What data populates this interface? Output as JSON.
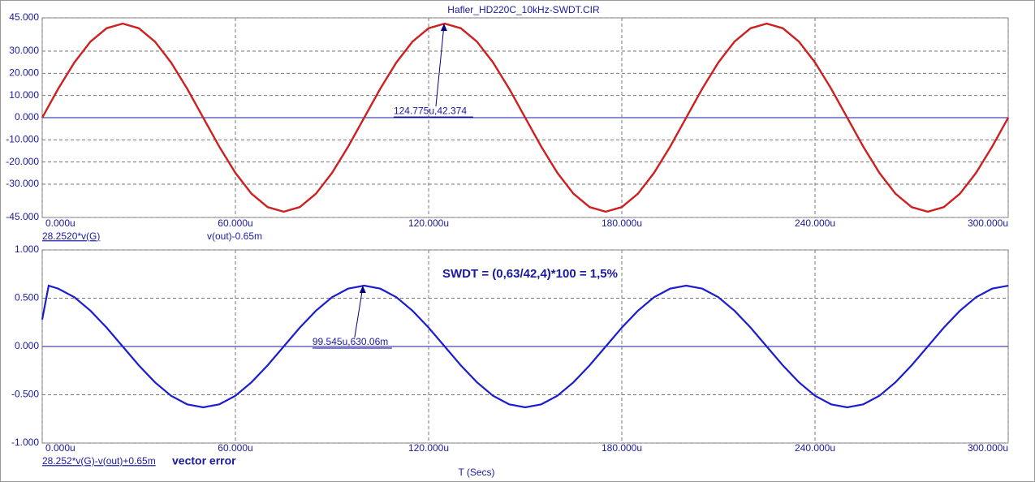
{
  "chart_data": [
    {
      "type": "line",
      "title": "Hafler_HD220C_10kHz-SWDT.CIR",
      "x": [
        0,
        5,
        10,
        15,
        20,
        25,
        30,
        35,
        40,
        45,
        50,
        55,
        60,
        65,
        70,
        75,
        80,
        85,
        90,
        95,
        100,
        105,
        110,
        115,
        120,
        125,
        130,
        135,
        140,
        145,
        150,
        155,
        160,
        165,
        170,
        175,
        180,
        185,
        190,
        195,
        200,
        205,
        210,
        215,
        220,
        225,
        230,
        235,
        240,
        245,
        250,
        255,
        260,
        265,
        270,
        275,
        280,
        285,
        290,
        295,
        300
      ],
      "series": [
        {
          "name": "28.2520*v(G)",
          "color": "#000000",
          "values": [
            0,
            13.1,
            24.92,
            34.3,
            40.32,
            42.4,
            40.32,
            34.3,
            24.92,
            13.1,
            0,
            -13.1,
            -24.92,
            -34.3,
            -40.32,
            -42.4,
            -40.32,
            -34.3,
            -24.92,
            -13.1,
            0,
            13.1,
            24.92,
            34.3,
            40.32,
            42.4,
            40.32,
            34.3,
            24.92,
            13.1,
            0,
            -13.1,
            -24.92,
            -34.3,
            -40.32,
            -42.4,
            -40.32,
            -34.3,
            -24.92,
            -13.1,
            0,
            13.1,
            24.92,
            34.3,
            40.32,
            42.4,
            40.32,
            34.3,
            24.92,
            13.1,
            0,
            -13.1,
            -24.92,
            -34.3,
            -40.32,
            -42.4,
            -40.32,
            -34.3,
            -24.92,
            -13.1,
            0
          ]
        },
        {
          "name": "v(out)-0.65m",
          "color": "#d81e1e",
          "values": [
            0,
            13.1,
            24.92,
            34.3,
            40.32,
            42.4,
            40.32,
            34.3,
            24.92,
            13.1,
            0,
            -13.1,
            -24.92,
            -34.3,
            -40.32,
            -42.4,
            -40.32,
            -34.3,
            -24.92,
            -13.1,
            0,
            13.1,
            24.92,
            34.3,
            40.32,
            42.4,
            40.32,
            34.3,
            24.92,
            13.1,
            0,
            -13.1,
            -24.92,
            -34.3,
            -40.32,
            -42.4,
            -40.32,
            -34.3,
            -24.92,
            -13.1,
            0,
            13.1,
            24.92,
            34.3,
            40.32,
            42.4,
            40.32,
            34.3,
            24.92,
            13.1,
            0,
            -13.1,
            -24.92,
            -34.3,
            -40.32,
            -42.4,
            -40.32,
            -34.3,
            -24.92,
            -13.1,
            0
          ]
        }
      ],
      "xlim": [
        0,
        300
      ],
      "xticks": [
        {
          "value": 0,
          "label": "0.000u"
        },
        {
          "value": 60,
          "label": "60.000u"
        },
        {
          "value": 120,
          "label": "120.000u"
        },
        {
          "value": 180,
          "label": "180.000u"
        },
        {
          "value": 240,
          "label": "240.000u"
        },
        {
          "value": 300,
          "label": "300.000u"
        }
      ],
      "ylim": [
        -45,
        45
      ],
      "yticks": [
        {
          "value": 45,
          "label": "45.000"
        },
        {
          "value": 30,
          "label": "30.000"
        },
        {
          "value": 20,
          "label": "20.000"
        },
        {
          "value": 10,
          "label": "10.000"
        },
        {
          "value": 0,
          "label": "0.000"
        },
        {
          "value": -10,
          "label": "-10.000"
        },
        {
          "value": -20,
          "label": "-20.000"
        },
        {
          "value": -30,
          "label": "-30.000"
        },
        {
          "value": -45,
          "label": "-45.000"
        }
      ],
      "grid": true,
      "annotations": [
        {
          "label": "124.775u,42.374",
          "x": 124.775,
          "y": 42.374
        }
      ]
    },
    {
      "type": "line",
      "xlabel": "T (Secs)",
      "x": [
        0,
        2,
        5,
        10,
        15,
        20,
        25,
        30,
        35,
        40,
        45,
        50,
        55,
        60,
        65,
        70,
        75,
        80,
        85,
        90,
        95,
        100,
        105,
        110,
        115,
        120,
        125,
        130,
        135,
        140,
        145,
        150,
        155,
        160,
        165,
        170,
        175,
        180,
        185,
        190,
        195,
        200,
        205,
        210,
        215,
        220,
        225,
        230,
        235,
        240,
        245,
        250,
        255,
        260,
        265,
        270,
        275,
        280,
        285,
        290,
        295,
        300
      ],
      "series": [
        {
          "name": "28.252*v(G)-v(out)+0.65m",
          "color": "#1c1cd0",
          "values": [
            0.28,
            0.63,
            0.599,
            0.51,
            0.37,
            0.195,
            0,
            -0.195,
            -0.37,
            -0.51,
            -0.599,
            -0.63,
            -0.599,
            -0.51,
            -0.37,
            -0.195,
            0,
            0.195,
            0.37,
            0.51,
            0.599,
            0.63,
            0.599,
            0.51,
            0.37,
            0.195,
            0,
            -0.195,
            -0.37,
            -0.51,
            -0.599,
            -0.63,
            -0.599,
            -0.51,
            -0.37,
            -0.195,
            0,
            0.195,
            0.37,
            0.51,
            0.599,
            0.63,
            0.599,
            0.51,
            0.37,
            0.195,
            0,
            -0.195,
            -0.37,
            -0.51,
            -0.599,
            -0.63,
            -0.599,
            -0.51,
            -0.37,
            -0.195,
            0,
            0.195,
            0.37,
            0.51,
            0.599,
            0.63
          ]
        }
      ],
      "xlim": [
        0,
        300
      ],
      "xticks": [
        {
          "value": 0,
          "label": "0.000u"
        },
        {
          "value": 60,
          "label": "60.000u"
        },
        {
          "value": 120,
          "label": "120.000u"
        },
        {
          "value": 180,
          "label": "180.000u"
        },
        {
          "value": 240,
          "label": "240.000u"
        },
        {
          "value": 300,
          "label": "300.000u"
        }
      ],
      "ylim": [
        -1,
        1
      ],
      "yticks": [
        {
          "value": 1,
          "label": "1.000"
        },
        {
          "value": 0.5,
          "label": "0.500"
        },
        {
          "value": 0,
          "label": "0.000"
        },
        {
          "value": -0.5,
          "label": "-0.500"
        },
        {
          "value": -1,
          "label": "-1.000"
        }
      ],
      "grid": true,
      "annotations": [
        {
          "label": "99.545u,630.06m",
          "x": 99.545,
          "y": 0.63006
        }
      ],
      "notes": [
        "SWDT = (0,63/42,4)*100 = 1,5%",
        "vector error"
      ]
    }
  ]
}
